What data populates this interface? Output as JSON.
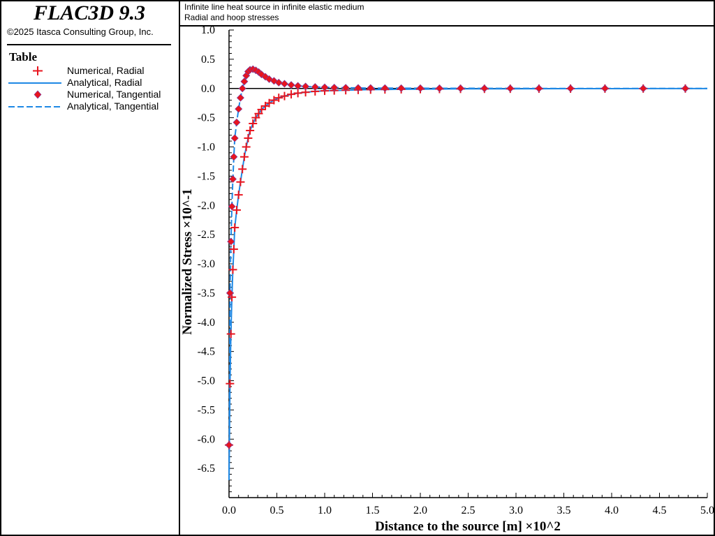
{
  "app": {
    "title": "FLAC3D 9.3",
    "copyright": "©2025 Itasca Consulting Group, Inc."
  },
  "legend": {
    "title": "Table",
    "items": [
      {
        "label": "Numerical, Radial",
        "symbol": "plus",
        "color": "#e8141e"
      },
      {
        "label": "Analytical, Radial",
        "symbol": "solid-line",
        "color": "#1e88e5"
      },
      {
        "label": "Numerical, Tangential",
        "symbol": "diamond",
        "color": "#e8141e"
      },
      {
        "label": "Analytical, Tangential",
        "symbol": "dashed-line",
        "color": "#1e88e5"
      }
    ]
  },
  "plot": {
    "subtitle_1": "Infinite line heat source in infinite elastic medium",
    "subtitle_2": "Radial and hoop stresses"
  },
  "chart_data": {
    "type": "line",
    "xlabel": "Distance to the source [m] ×10^2",
    "ylabel": "Normalized Stress ×10^-1",
    "xlim": [
      0,
      5
    ],
    "ylim": [
      -7.0,
      1.0
    ],
    "xticks": [
      "0.0",
      "0.5",
      "1.0",
      "1.5",
      "2.0",
      "2.5",
      "3.0",
      "3.5",
      "4.0",
      "4.5",
      "5.0"
    ],
    "yticks": [
      "1.0",
      "0.5",
      "0.0",
      "-0.5",
      "-1.0",
      "-1.5",
      "-2.0",
      "-2.5",
      "-3.0",
      "-3.5",
      "-4.0",
      "-4.5",
      "-5.0",
      "-5.5",
      "-6.0",
      "-6.5"
    ],
    "grid": false,
    "legend_position": "left panel",
    "series": [
      {
        "name": "Numerical, Radial",
        "marker": "plus",
        "color": "#e8141e",
        "x": [
          0.0,
          0.01,
          0.02,
          0.03,
          0.04,
          0.05,
          0.06,
          0.08,
          0.1,
          0.12,
          0.14,
          0.16,
          0.18,
          0.2,
          0.22,
          0.25,
          0.28,
          0.31,
          0.34,
          0.38,
          0.42,
          0.47,
          0.52,
          0.58,
          0.65,
          0.72,
          0.8,
          0.9,
          1.0,
          1.1,
          1.22,
          1.35,
          1.48,
          1.63,
          1.8,
          2.0,
          2.2,
          2.42,
          2.67,
          2.94,
          3.24,
          3.57,
          3.93,
          4.33,
          4.77
        ],
        "y": [
          -6.1,
          -5.05,
          -4.2,
          -3.57,
          -3.1,
          -2.75,
          -2.38,
          -2.08,
          -1.82,
          -1.6,
          -1.38,
          -1.17,
          -1.0,
          -0.85,
          -0.72,
          -0.6,
          -0.5,
          -0.43,
          -0.36,
          -0.3,
          -0.25,
          -0.2,
          -0.16,
          -0.13,
          -0.1,
          -0.08,
          -0.065,
          -0.05,
          -0.04,
          -0.035,
          -0.03,
          -0.025,
          -0.02,
          -0.017,
          -0.014,
          -0.011,
          -0.009,
          -0.007,
          -0.006,
          -0.005,
          -0.004,
          -0.003,
          -0.0025,
          -0.002,
          -0.0015
        ]
      },
      {
        "name": "Analytical, Radial",
        "line": "solid",
        "color": "#1e88e5",
        "x": [
          0.0,
          0.01,
          0.02,
          0.03,
          0.04,
          0.05,
          0.06,
          0.08,
          0.1,
          0.12,
          0.14,
          0.16,
          0.18,
          0.2,
          0.22,
          0.25,
          0.28,
          0.31,
          0.34,
          0.38,
          0.42,
          0.47,
          0.52,
          0.58,
          0.65,
          0.72,
          0.8,
          0.9,
          1.0,
          1.1,
          1.22,
          1.35,
          1.48,
          1.63,
          1.8,
          2.0,
          2.2,
          2.42,
          2.67,
          2.94,
          3.24,
          3.57,
          3.93,
          4.33,
          4.77,
          5.0
        ],
        "y": [
          -6.7,
          -5.05,
          -4.2,
          -3.57,
          -3.1,
          -2.75,
          -2.38,
          -2.08,
          -1.82,
          -1.6,
          -1.38,
          -1.17,
          -1.0,
          -0.85,
          -0.72,
          -0.6,
          -0.5,
          -0.43,
          -0.36,
          -0.3,
          -0.25,
          -0.2,
          -0.16,
          -0.13,
          -0.1,
          -0.08,
          -0.065,
          -0.05,
          -0.04,
          -0.035,
          -0.03,
          -0.025,
          -0.02,
          -0.017,
          -0.014,
          -0.011,
          -0.009,
          -0.007,
          -0.006,
          -0.005,
          -0.004,
          -0.003,
          -0.0025,
          -0.002,
          -0.0015,
          -0.0012
        ]
      },
      {
        "name": "Numerical, Tangential",
        "marker": "diamond",
        "color": "#e8141e",
        "x": [
          0.0,
          0.01,
          0.02,
          0.03,
          0.04,
          0.05,
          0.06,
          0.08,
          0.1,
          0.12,
          0.14,
          0.16,
          0.18,
          0.2,
          0.22,
          0.25,
          0.28,
          0.31,
          0.34,
          0.38,
          0.42,
          0.47,
          0.52,
          0.58,
          0.65,
          0.72,
          0.8,
          0.9,
          1.0,
          1.1,
          1.22,
          1.35,
          1.48,
          1.63,
          1.8,
          2.0,
          2.2,
          2.42,
          2.67,
          2.94,
          3.24,
          3.57,
          3.93,
          4.33,
          4.77
        ],
        "y": [
          -6.1,
          -3.5,
          -2.62,
          -2.02,
          -1.55,
          -1.17,
          -0.85,
          -0.58,
          -0.35,
          -0.16,
          0.0,
          0.12,
          0.22,
          0.29,
          0.32,
          0.33,
          0.31,
          0.28,
          0.24,
          0.2,
          0.16,
          0.13,
          0.1,
          0.08,
          0.06,
          0.045,
          0.035,
          0.025,
          0.02,
          0.015,
          0.012,
          0.009,
          0.007,
          0.006,
          0.005,
          0.004,
          0.003,
          0.0025,
          0.002,
          0.0015,
          0.001,
          0.001,
          0.0008,
          0.0006,
          0.0005
        ]
      },
      {
        "name": "Analytical, Tangential",
        "line": "dashed",
        "color": "#1e88e5",
        "x": [
          0.0,
          0.01,
          0.02,
          0.03,
          0.04,
          0.05,
          0.06,
          0.08,
          0.1,
          0.12,
          0.14,
          0.16,
          0.18,
          0.2,
          0.22,
          0.25,
          0.28,
          0.31,
          0.34,
          0.38,
          0.42,
          0.47,
          0.52,
          0.58,
          0.65,
          0.72,
          0.8,
          0.9,
          1.0,
          1.1,
          1.22,
          1.35,
          1.48,
          1.63,
          1.8,
          2.0,
          2.2,
          2.42,
          2.67,
          2.94,
          3.24,
          3.57,
          3.93,
          4.33,
          4.77,
          5.0
        ],
        "y": [
          -6.7,
          -3.5,
          -2.62,
          -2.02,
          -1.55,
          -1.17,
          -0.85,
          -0.58,
          -0.35,
          -0.16,
          0.0,
          0.12,
          0.22,
          0.29,
          0.32,
          0.33,
          0.31,
          0.28,
          0.24,
          0.2,
          0.16,
          0.13,
          0.1,
          0.08,
          0.06,
          0.045,
          0.035,
          0.025,
          0.02,
          0.015,
          0.012,
          0.009,
          0.007,
          0.006,
          0.005,
          0.004,
          0.003,
          0.0025,
          0.002,
          0.0015,
          0.001,
          0.001,
          0.0008,
          0.0006,
          0.0005,
          0.0004
        ]
      }
    ]
  }
}
